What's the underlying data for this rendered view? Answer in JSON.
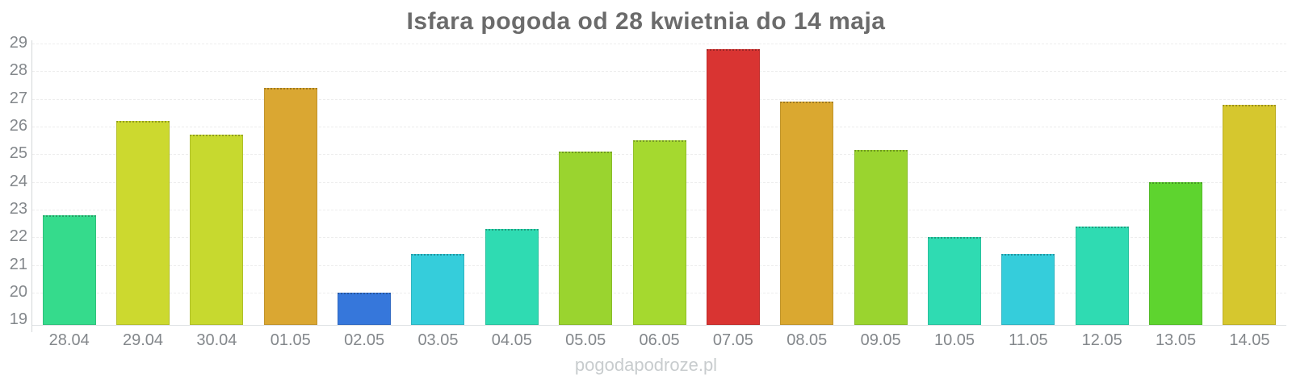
{
  "chart_data": {
    "type": "bar",
    "title": "Isfara pogoda od 28 kwietnia do 14 maja",
    "xlabel": "",
    "ylabel": "",
    "categories": [
      "28.04",
      "29.04",
      "30.04",
      "01.05",
      "02.05",
      "03.05",
      "04.05",
      "05.05",
      "06.05",
      "07.05",
      "08.05",
      "09.05",
      "10.05",
      "11.05",
      "12.05",
      "13.05",
      "14.05"
    ],
    "values": [
      22.8,
      26.2,
      25.7,
      27.4,
      20.0,
      21.4,
      22.3,
      25.1,
      25.5,
      28.8,
      26.9,
      25.15,
      22.0,
      21.4,
      22.4,
      24.0,
      26.8
    ],
    "bar_colors": [
      "#35db8c",
      "#ccd92f",
      "#c7d92f",
      "#daa732",
      "#3677db",
      "#35cddb",
      "#2fdbb2",
      "#9ad42f",
      "#a5d92f",
      "#d93432",
      "#daa830",
      "#9ad42f",
      "#2fdbb2",
      "#35cddb",
      "#2fdbb2",
      "#5ed42f",
      "#d6c72e"
    ],
    "y_ticks": [
      19,
      20,
      21,
      22,
      23,
      24,
      25,
      26,
      27,
      28,
      29
    ],
    "ylim": [
      18.83,
      29.26
    ],
    "grid": "horizontal-dashed",
    "legend": "none"
  },
  "footer": {
    "watermark": "pogodapodroze.pl"
  },
  "colors": {
    "background": "#ffffff",
    "title_text": "#6b6b6b",
    "axis_label_text": "#83878b",
    "gridline": "#ededed",
    "axis_line": "#d4d7d9",
    "baseline": "#dfe2e4",
    "watermark_text": "#c8ccce"
  }
}
